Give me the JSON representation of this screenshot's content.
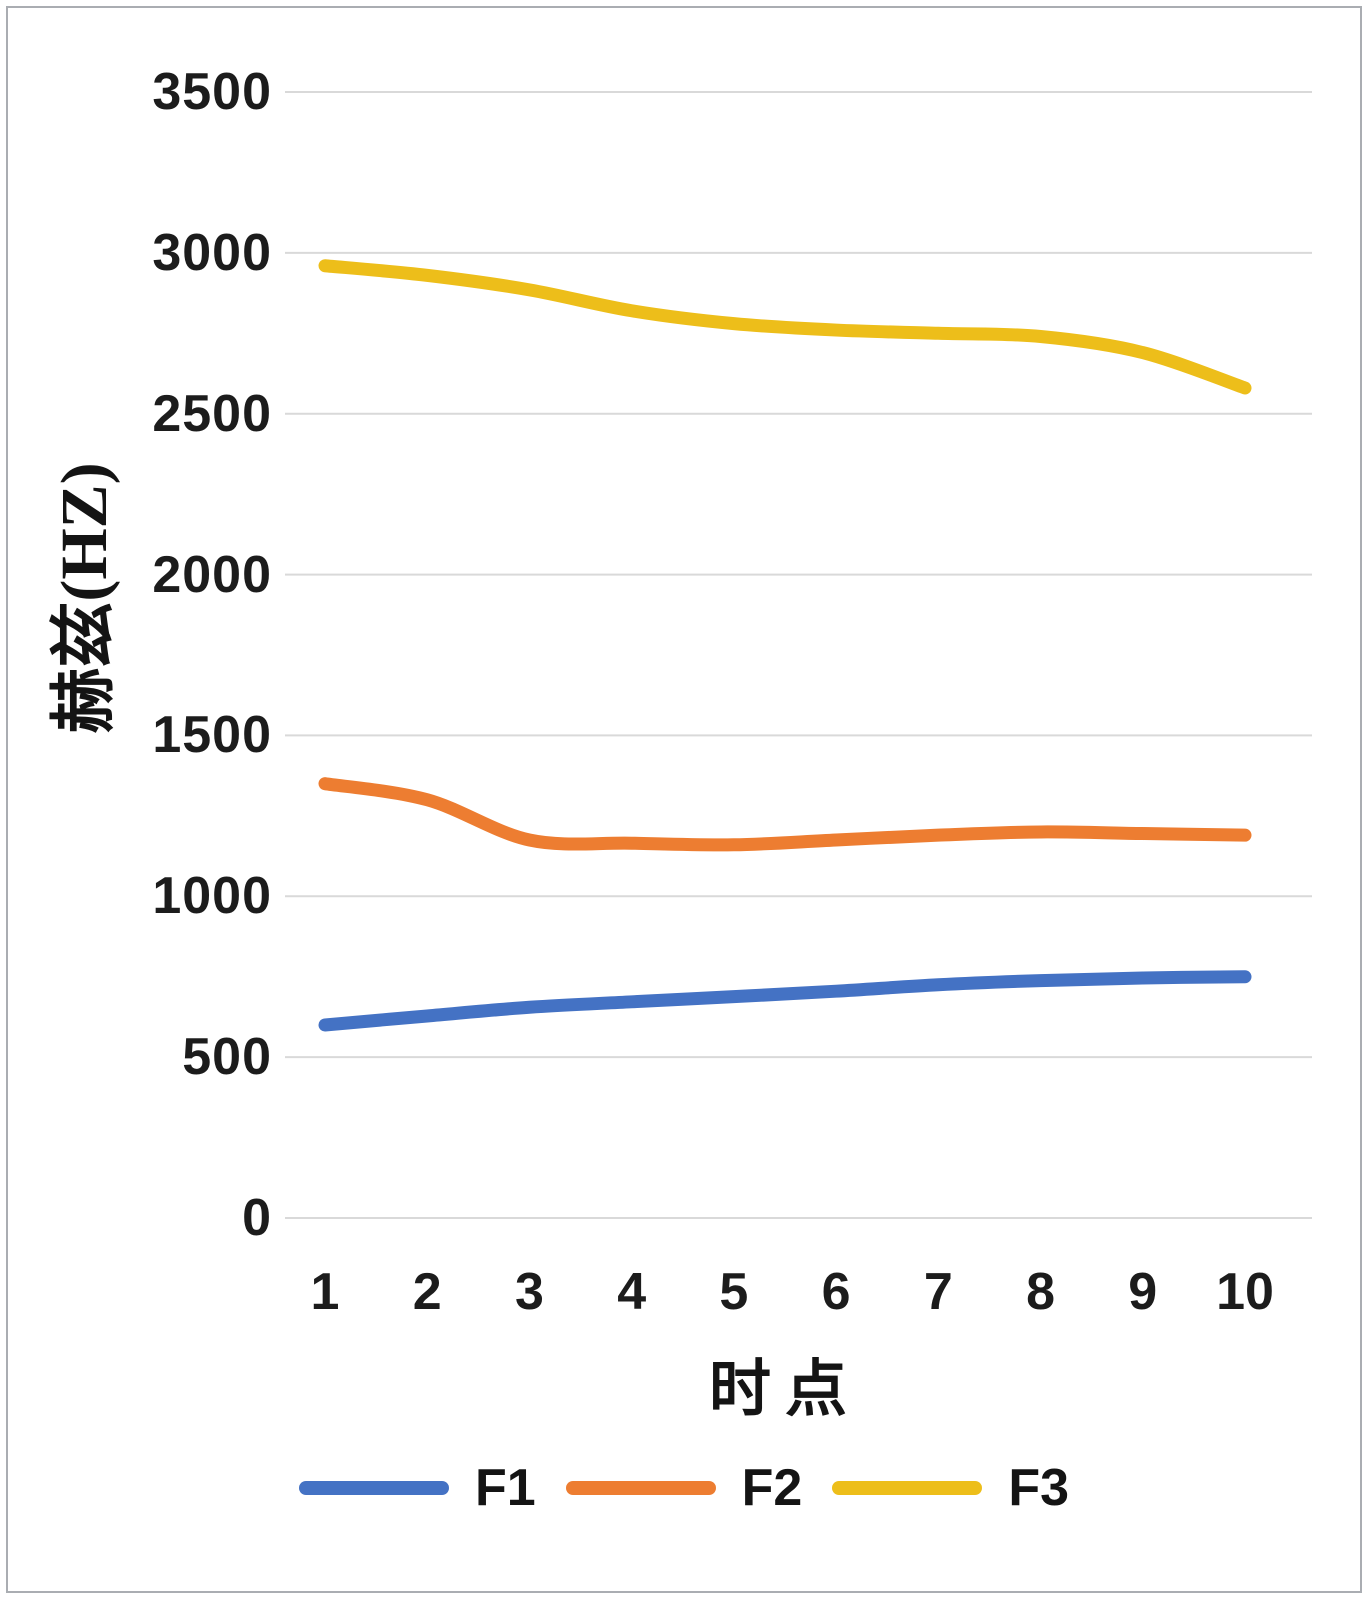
{
  "chart_data": {
    "type": "line",
    "title": "",
    "xlabel": "时点",
    "ylabel": "赫兹(HZ)",
    "x": [
      1,
      2,
      3,
      4,
      5,
      6,
      7,
      8,
      9,
      10
    ],
    "x_tick_labels": [
      "1",
      "2",
      "3",
      "4",
      "5",
      "6",
      "7",
      "8",
      "9",
      "10"
    ],
    "yticks": [
      0,
      500,
      1000,
      1500,
      2000,
      2500,
      3000,
      3500
    ],
    "ylim": [
      0,
      3500
    ],
    "grid": true,
    "grid_color": "#d9d9d9",
    "legend_position": "bottom",
    "series": [
      {
        "name": "F1",
        "color": "#4472C4",
        "values": [
          600,
          628,
          655,
          672,
          688,
          705,
          725,
          738,
          746,
          750
        ]
      },
      {
        "name": "F2",
        "color": "#ED7D31",
        "values": [
          1350,
          1300,
          1175,
          1165,
          1160,
          1175,
          1190,
          1200,
          1195,
          1190
        ]
      },
      {
        "name": "F3",
        "color": "#EDBE1A",
        "values": [
          2960,
          2930,
          2885,
          2820,
          2780,
          2760,
          2750,
          2740,
          2690,
          2580
        ]
      }
    ]
  }
}
